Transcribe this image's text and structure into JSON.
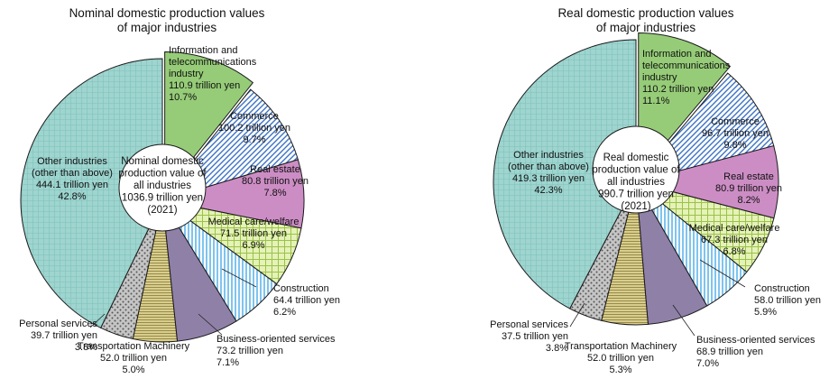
{
  "chart_data": [
    {
      "type": "pie",
      "title_lines": [
        "Nominal domestic production values",
        "of major industries"
      ],
      "center_lines": [
        "Nominal domestic",
        "production value of",
        "all industries",
        "1036.9 trillion yen",
        "(2021)"
      ],
      "unit": "trillion yen",
      "slices": [
        {
          "label": "Information and telecommunications industry",
          "label_lines": [
            "Information and",
            "telecommunications",
            "industry"
          ],
          "value": 110.9,
          "value_text": "110.9 trillion yen",
          "percent": 10.7,
          "percent_text": "10.7%",
          "pattern": "green",
          "exploded": true
        },
        {
          "label": "Commerce",
          "label_lines": [
            "Commerce"
          ],
          "value": 100.2,
          "value_text": "100.2 trillion yen",
          "percent": 9.7,
          "percent_text": "9.7%",
          "pattern": "diagonal"
        },
        {
          "label": "Real estate",
          "label_lines": [
            "Real estate"
          ],
          "value": 80.8,
          "value_text": "80.8 trillion yen",
          "percent": 7.8,
          "percent_text": "7.8%",
          "pattern": "pink"
        },
        {
          "label": "Medical care/welfare",
          "label_lines": [
            "Medical care/welfare"
          ],
          "value": 71.5,
          "value_text": "71.5 trillion yen",
          "percent": 6.9,
          "percent_text": "6.9%",
          "pattern": "grid"
        },
        {
          "label": "Construction",
          "label_lines": [
            "Construction"
          ],
          "value": 64.4,
          "value_text": "64.4 trillion yen",
          "percent": 6.2,
          "percent_text": "6.2%",
          "pattern": "vertical"
        },
        {
          "label": "Business-oriented services",
          "label_lines": [
            "Business-oriented services"
          ],
          "value": 73.2,
          "value_text": "73.2 trillion yen",
          "percent": 7.1,
          "percent_text": "7.1%",
          "pattern": "purple"
        },
        {
          "label": "Transportation Machinery",
          "label_lines": [
            "Transportation Machinery"
          ],
          "value": 52.0,
          "value_text": "52.0 trillion yen",
          "percent": 5.0,
          "percent_text": "5.0%",
          "pattern": "horizontal"
        },
        {
          "label": "Personal services",
          "label_lines": [
            "Personal services"
          ],
          "value": 39.7,
          "value_text": "39.7 trillion yen",
          "percent": 3.8,
          "percent_text": "3.8%",
          "pattern": "dots"
        },
        {
          "label": "Other industries (other than above)",
          "label_lines": [
            "Other industries",
            "(other than above)"
          ],
          "value": 444.1,
          "value_text": "444.1 trillion yen",
          "percent": 42.8,
          "percent_text": "42.8%",
          "pattern": "teal"
        }
      ]
    },
    {
      "type": "pie",
      "title_lines": [
        "Real domestic production values",
        "of major industries"
      ],
      "center_lines": [
        "Real domestic",
        "production value of",
        "all industries",
        "990.7 trillion yen",
        "(2021)"
      ],
      "unit": "trillion yen",
      "slices": [
        {
          "label": "Information and telecommunications industry",
          "label_lines": [
            "Information and",
            "telecommunications",
            "industry"
          ],
          "value": 110.2,
          "value_text": "110.2 trillion yen",
          "percent": 11.1,
          "percent_text": "11.1%",
          "pattern": "green",
          "exploded": true
        },
        {
          "label": "Commerce",
          "label_lines": [
            "Commerce"
          ],
          "value": 96.7,
          "value_text": "96.7 trillion yen",
          "percent": 9.8,
          "percent_text": "9.8%",
          "pattern": "diagonal"
        },
        {
          "label": "Real estate",
          "label_lines": [
            "Real estate"
          ],
          "value": 80.9,
          "value_text": "80.9 trillion yen",
          "percent": 8.2,
          "percent_text": "8.2%",
          "pattern": "pink"
        },
        {
          "label": "Medical care/welfare",
          "label_lines": [
            "Medical care/welfare"
          ],
          "value": 67.3,
          "value_text": "67.3 trillion yen",
          "percent": 6.8,
          "percent_text": "6.8%",
          "pattern": "grid"
        },
        {
          "label": "Construction",
          "label_lines": [
            "Construction"
          ],
          "value": 58.0,
          "value_text": "58.0 trillion yen",
          "percent": 5.9,
          "percent_text": "5.9%",
          "pattern": "vertical"
        },
        {
          "label": "Business-oriented services",
          "label_lines": [
            "Business-oriented services"
          ],
          "value": 68.9,
          "value_text": "68.9 trillion yen",
          "percent": 7.0,
          "percent_text": "7.0%",
          "pattern": "purple"
        },
        {
          "label": "Transportation Machinery",
          "label_lines": [
            "Transportation Machinery"
          ],
          "value": 52.0,
          "value_text": "52.0 trillion yen",
          "percent": 5.3,
          "percent_text": "5.3%",
          "pattern": "horizontal"
        },
        {
          "label": "Personal services",
          "label_lines": [
            "Personal services"
          ],
          "value": 37.5,
          "value_text": "37.5 trillion yen",
          "percent": 3.8,
          "percent_text": "3.8%",
          "pattern": "dots"
        },
        {
          "label": "Other industries (other than above)",
          "label_lines": [
            "Other industries",
            "(other than above)"
          ],
          "value": 419.3,
          "value_text": "419.3 trillion yen",
          "percent": 42.3,
          "percent_text": "42.3%",
          "pattern": "teal"
        }
      ]
    }
  ],
  "colors": {
    "green": "#96cc78",
    "diagonal_line": "#3d72c4",
    "pink": "#cc8dc4",
    "grid_fill": "#e5f2b8",
    "grid_line": "#9bc248",
    "vertical_line": "#3aa4e6",
    "purple": "#8f80a8",
    "horizontal_fill": "#d9cd8e",
    "horizontal_line": "#8f8440",
    "dots_fill": "#c5c5c5",
    "dots_dot": "#555555",
    "teal": "#9fd4cf",
    "teal_line": "#6dbab2",
    "outline": "#1a1a1a"
  }
}
